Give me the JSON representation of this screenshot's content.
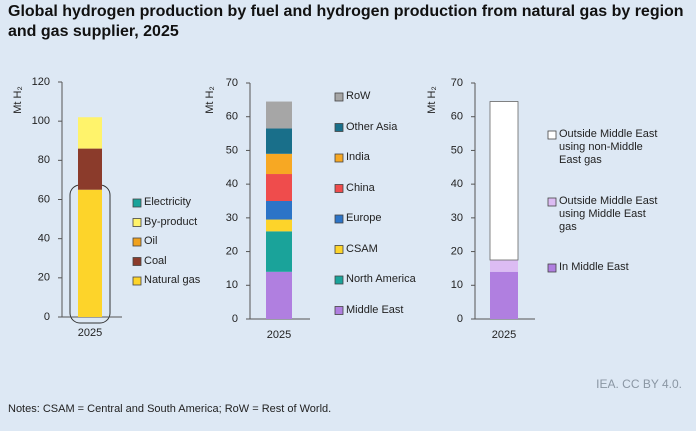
{
  "title": "Global hydrogen production by fuel and hydrogen production from natural gas by region and gas supplier, 2025",
  "source": "IEA. CC BY 4.0.",
  "notes": "Notes: CSAM = Central and South America; RoW = Rest of World.",
  "chart_data": [
    {
      "type": "bar",
      "stacked": true,
      "y_label": "Mt H₂",
      "categories": [
        "2025"
      ],
      "ylim": [
        0,
        120
      ],
      "yticks": [
        0,
        20,
        40,
        60,
        80,
        100,
        120
      ],
      "series": [
        {
          "name": "Natural gas",
          "color": "#fdd42a",
          "values": [
            65
          ]
        },
        {
          "name": "Coal",
          "color": "#8b3b2b",
          "values": [
            21
          ]
        },
        {
          "name": "Oil",
          "color": "#f0a11d",
          "values": [
            0
          ]
        },
        {
          "name": "By-product",
          "color": "#fff36b",
          "values": [
            16
          ]
        },
        {
          "name": "Electricity",
          "color": "#1aa39a",
          "values": [
            0
          ]
        }
      ]
    },
    {
      "type": "bar",
      "stacked": true,
      "y_label": "Mt H₂",
      "categories": [
        "2025"
      ],
      "ylim": [
        0,
        70
      ],
      "yticks": [
        0,
        10,
        20,
        30,
        40,
        50,
        60,
        70
      ],
      "series": [
        {
          "name": "Middle East",
          "color": "#b07fe0",
          "values": [
            14
          ]
        },
        {
          "name": "North America",
          "color": "#1aa39a",
          "values": [
            12
          ]
        },
        {
          "name": "CSAM",
          "color": "#fdd42a",
          "values": [
            3.5
          ]
        },
        {
          "name": "Europe",
          "color": "#2c74c7",
          "values": [
            5.5
          ]
        },
        {
          "name": "China",
          "color": "#ef4c4c",
          "values": [
            8
          ]
        },
        {
          "name": "India",
          "color": "#f7a823",
          "values": [
            6
          ]
        },
        {
          "name": "Other Asia",
          "color": "#196f8a",
          "values": [
            7.5
          ]
        },
        {
          "name": "RoW",
          "color": "#a6a6a6",
          "values": [
            8
          ]
        }
      ]
    },
    {
      "type": "bar",
      "stacked": true,
      "y_label": "Mt H₂",
      "categories": [
        "2025"
      ],
      "ylim": [
        0,
        70
      ],
      "yticks": [
        0,
        10,
        20,
        30,
        40,
        50,
        60,
        70
      ],
      "series": [
        {
          "name": "In Middle East",
          "color": "#b07fe0",
          "values": [
            14
          ]
        },
        {
          "name": "Outside Middle East using Middle East gas",
          "color": "#dcbcf3",
          "values": [
            3.5
          ]
        },
        {
          "name": "Outside Middle East using non-Middle East gas",
          "color": "#ffffff",
          "values": [
            47
          ]
        }
      ]
    }
  ]
}
